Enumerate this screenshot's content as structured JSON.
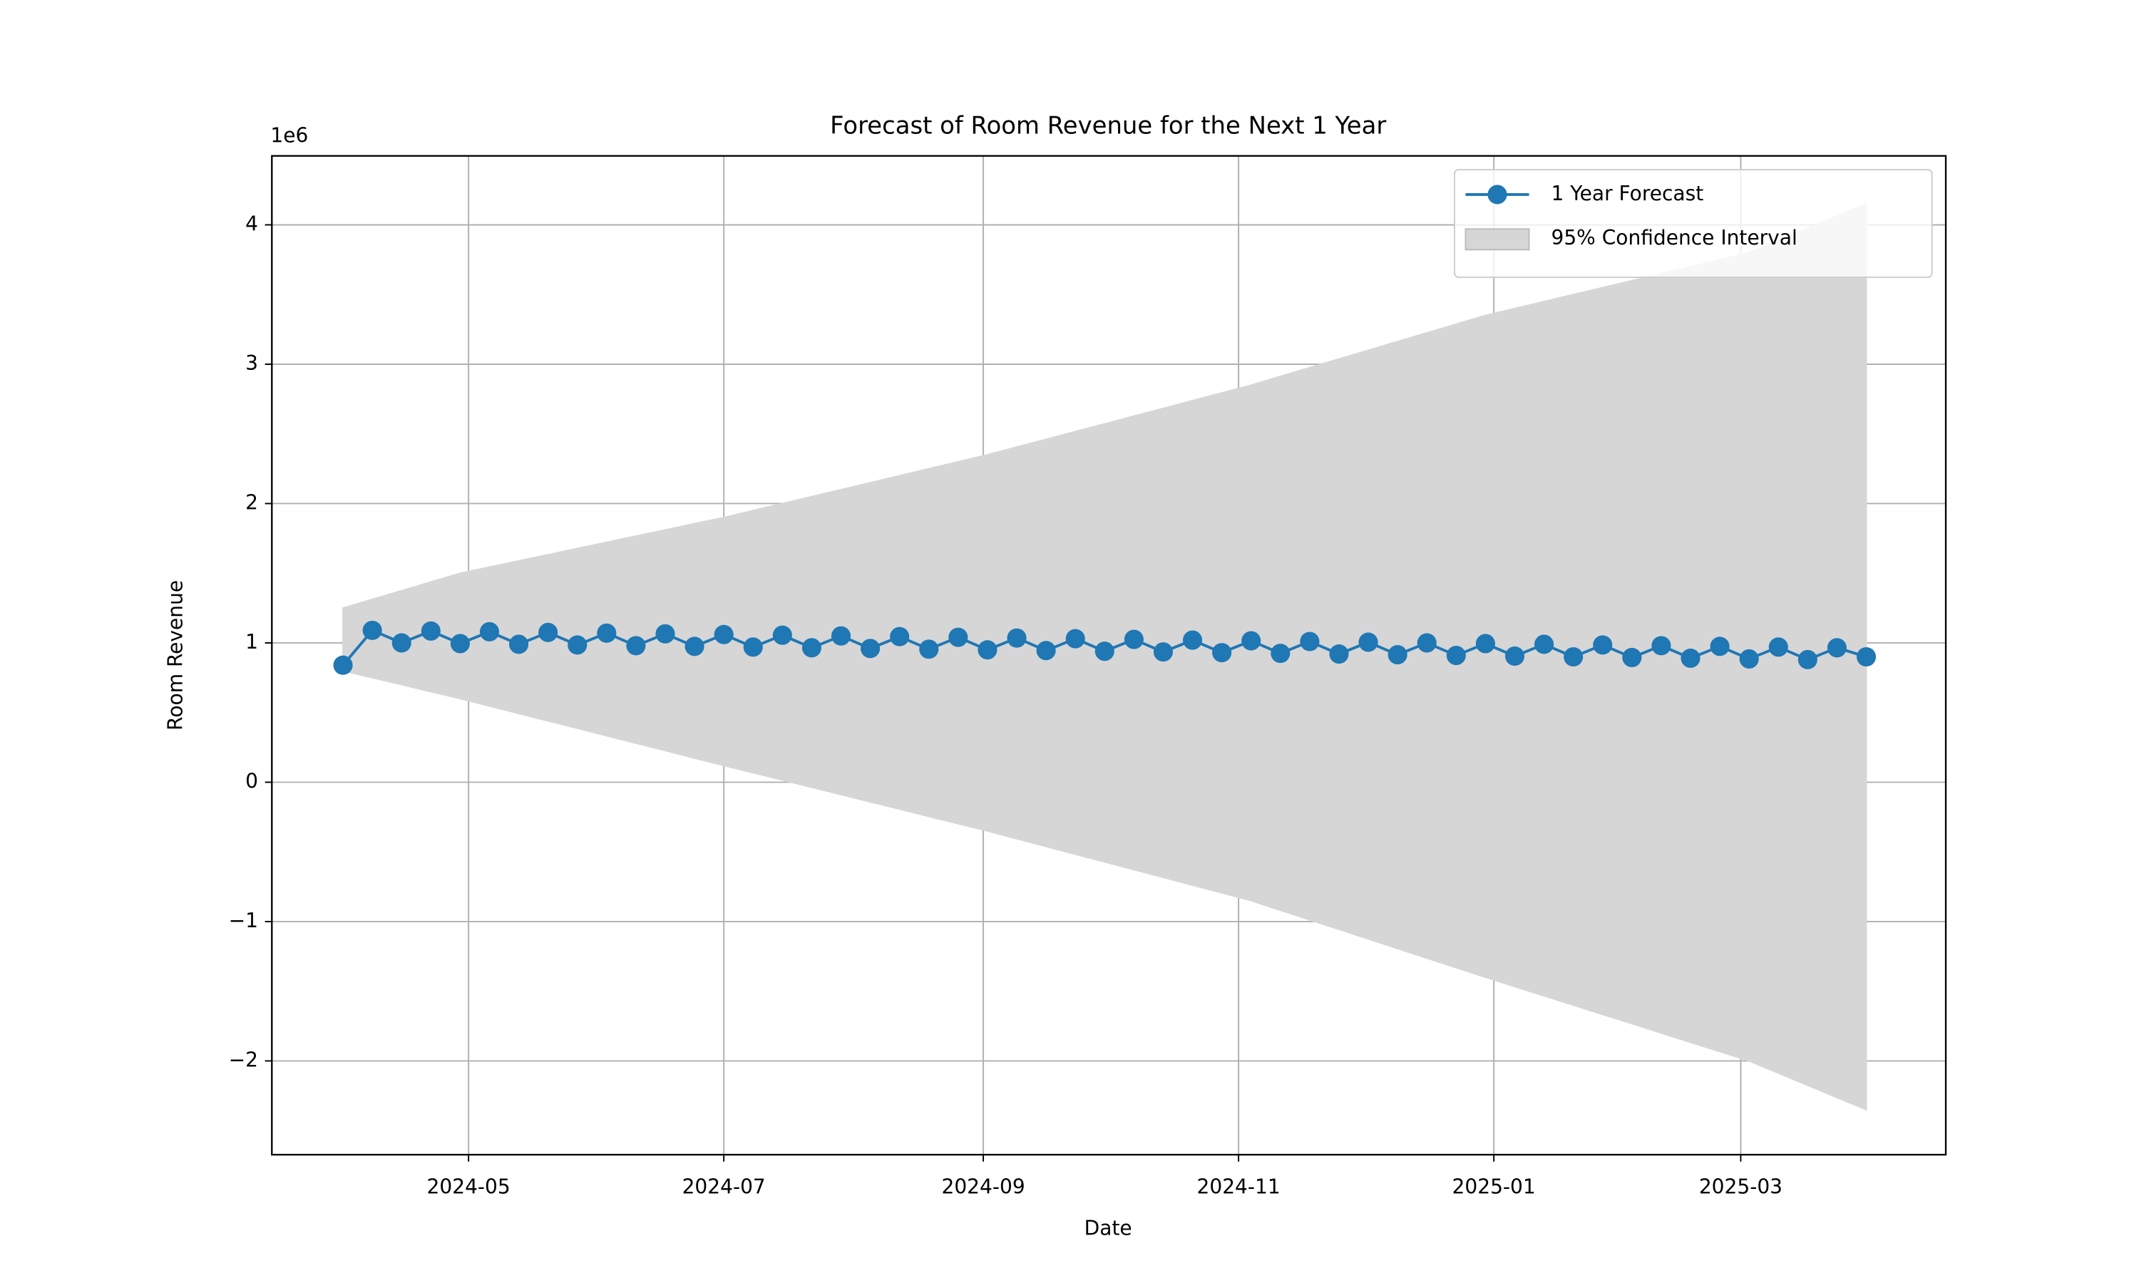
{
  "chart_data": {
    "type": "line",
    "title": "Forecast of Room Revenue for the Next 1 Year",
    "x_label": "Date",
    "y_label": "Room Revenue",
    "y_offset_label": "1e6",
    "x": [
      "2024-04-01",
      "2024-04-08",
      "2024-04-15",
      "2024-04-22",
      "2024-04-29",
      "2024-05-06",
      "2024-05-13",
      "2024-05-20",
      "2024-05-27",
      "2024-06-03",
      "2024-06-10",
      "2024-06-17",
      "2024-06-24",
      "2024-07-01",
      "2024-07-08",
      "2024-07-15",
      "2024-07-22",
      "2024-07-29",
      "2024-08-05",
      "2024-08-12",
      "2024-08-19",
      "2024-08-26",
      "2024-09-02",
      "2024-09-09",
      "2024-09-16",
      "2024-09-23",
      "2024-09-30",
      "2024-10-07",
      "2024-10-14",
      "2024-10-21",
      "2024-10-28",
      "2024-11-04",
      "2024-11-11",
      "2024-11-18",
      "2024-11-25",
      "2024-12-02",
      "2024-12-09",
      "2024-12-16",
      "2024-12-23",
      "2024-12-30",
      "2025-01-06",
      "2025-01-13",
      "2025-01-20",
      "2025-01-27",
      "2025-02-03",
      "2025-02-10",
      "2025-02-17",
      "2025-02-24",
      "2025-03-03",
      "2025-03-10",
      "2025-03-17",
      "2025-03-24",
      "2025-03-31"
    ],
    "series": [
      {
        "name": "1 Year Forecast",
        "color": "#1f77b4",
        "values": [
          840000,
          1090000,
          1000000,
          1085000,
          995000,
          1080000,
          990000,
          1075000,
          985000,
          1070000,
          980000,
          1065000,
          975000,
          1060000,
          970000,
          1055000,
          965000,
          1050000,
          960000,
          1045000,
          955000,
          1040000,
          950000,
          1035000,
          945000,
          1030000,
          940000,
          1025000,
          935000,
          1020000,
          930000,
          1015000,
          925000,
          1010000,
          920000,
          1005000,
          915000,
          1000000,
          910000,
          995000,
          905000,
          990000,
          900000,
          985000,
          895000,
          980000,
          890000,
          975000,
          885000,
          970000,
          880000,
          965000,
          900000
        ]
      }
    ],
    "confidence_interval": {
      "name": "95% Confidence Interval",
      "color": "#d6d6d6",
      "upper": [
        1250000,
        1312500,
        1375000,
        1437500,
        1500000,
        1544000,
        1589000,
        1633000,
        1678000,
        1722000,
        1767000,
        1811000,
        1856000,
        1900000,
        1950000,
        2000000,
        2050000,
        2100000,
        2150000,
        2200000,
        2250000,
        2300000,
        2350000,
        2406000,
        2461000,
        2517000,
        2572000,
        2628000,
        2683000,
        2739000,
        2794000,
        2850000,
        2913000,
        2975000,
        3038000,
        3100000,
        3163000,
        3225000,
        3288000,
        3350000,
        3400000,
        3450000,
        3500000,
        3550000,
        3600000,
        3650000,
        3700000,
        3750000,
        3800000,
        3888000,
        3975000,
        4063000,
        4150000
      ],
      "lower": [
        800000,
        750000,
        700000,
        650000,
        600000,
        547000,
        493000,
        440000,
        387000,
        333000,
        280000,
        227000,
        173000,
        120000,
        68000,
        16000,
        -37000,
        -89000,
        -141000,
        -193000,
        -246000,
        -298000,
        -350000,
        -406000,
        -461000,
        -517000,
        -572000,
        -628000,
        -683000,
        -739000,
        -794000,
        -850000,
        -919000,
        -988000,
        -1056000,
        -1125000,
        -1194000,
        -1263000,
        -1331000,
        -1400000,
        -1467000,
        -1533000,
        -1600000,
        -1667000,
        -1733000,
        -1800000,
        -1867000,
        -1933000,
        -2000000,
        -2088000,
        -2175000,
        -2263000,
        -2350000
      ]
    },
    "xlim": [
      "2024-03-15",
      "2025-04-19"
    ],
    "xticks": [
      {
        "value": "2024-05-01",
        "label": "2024-05"
      },
      {
        "value": "2024-07-01",
        "label": "2024-07"
      },
      {
        "value": "2024-09-01",
        "label": "2024-09"
      },
      {
        "value": "2024-11-01",
        "label": "2024-11"
      },
      {
        "value": "2025-01-01",
        "label": "2025-01"
      },
      {
        "value": "2025-03-01",
        "label": "2025-03"
      }
    ],
    "ylim": [
      -2673000,
      4495000
    ],
    "yticks": [
      {
        "value": -2000000,
        "label": "−2"
      },
      {
        "value": -1000000,
        "label": "−1"
      },
      0,
      {
        "value": 1000000,
        "label": "1"
      },
      {
        "value": 2000000,
        "label": "2"
      },
      {
        "value": 3000000,
        "label": "3"
      },
      {
        "value": 4000000,
        "label": "4"
      }
    ],
    "grid": true,
    "legend": "upper right"
  }
}
